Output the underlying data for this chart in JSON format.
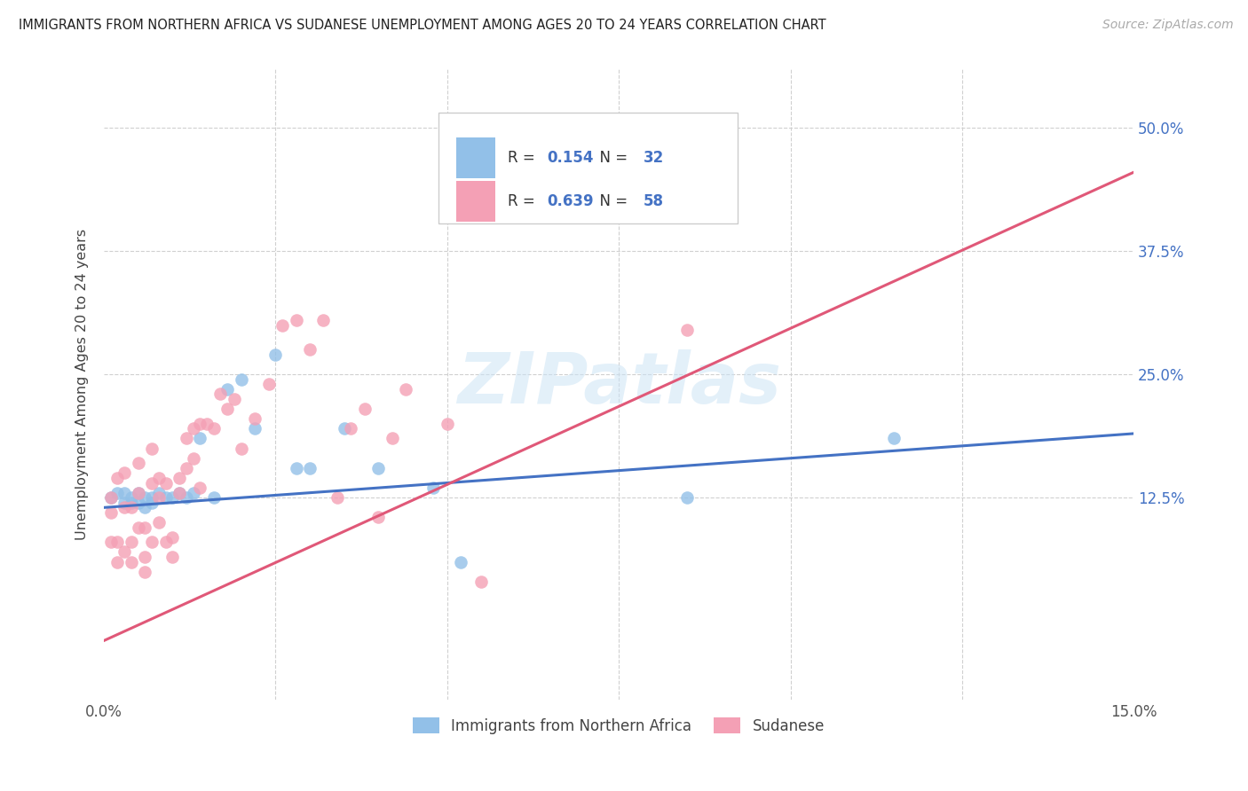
{
  "title": "IMMIGRANTS FROM NORTHERN AFRICA VS SUDANESE UNEMPLOYMENT AMONG AGES 20 TO 24 YEARS CORRELATION CHART",
  "source": "Source: ZipAtlas.com",
  "ylabel": "Unemployment Among Ages 20 to 24 years",
  "legend_label_1": "Immigrants from Northern Africa",
  "legend_label_2": "Sudanese",
  "R1": 0.154,
  "N1": 32,
  "R2": 0.639,
  "N2": 58,
  "xlim": [
    0.0,
    0.15
  ],
  "ylim": [
    -0.08,
    0.56
  ],
  "color_blue": "#92C0E8",
  "color_pink": "#F4A0B5",
  "line_blue": "#4472C4",
  "line_pink": "#E05878",
  "background": "#ffffff",
  "blue_x": [
    0.001,
    0.002,
    0.003,
    0.003,
    0.004,
    0.004,
    0.005,
    0.005,
    0.006,
    0.006,
    0.007,
    0.007,
    0.008,
    0.009,
    0.01,
    0.011,
    0.012,
    0.013,
    0.014,
    0.016,
    0.018,
    0.02,
    0.022,
    0.025,
    0.028,
    0.03,
    0.035,
    0.04,
    0.048,
    0.052,
    0.085,
    0.115
  ],
  "blue_y": [
    0.125,
    0.13,
    0.12,
    0.13,
    0.125,
    0.12,
    0.13,
    0.12,
    0.125,
    0.115,
    0.125,
    0.12,
    0.13,
    0.125,
    0.125,
    0.13,
    0.125,
    0.13,
    0.185,
    0.125,
    0.235,
    0.245,
    0.195,
    0.27,
    0.155,
    0.155,
    0.195,
    0.155,
    0.135,
    0.06,
    0.125,
    0.185
  ],
  "pink_x": [
    0.001,
    0.001,
    0.001,
    0.002,
    0.002,
    0.002,
    0.003,
    0.003,
    0.003,
    0.004,
    0.004,
    0.004,
    0.005,
    0.005,
    0.005,
    0.006,
    0.006,
    0.006,
    0.007,
    0.007,
    0.007,
    0.008,
    0.008,
    0.008,
    0.009,
    0.009,
    0.01,
    0.01,
    0.011,
    0.011,
    0.012,
    0.012,
    0.013,
    0.013,
    0.014,
    0.014,
    0.015,
    0.016,
    0.017,
    0.018,
    0.019,
    0.02,
    0.022,
    0.024,
    0.026,
    0.028,
    0.03,
    0.032,
    0.034,
    0.036,
    0.038,
    0.04,
    0.042,
    0.044,
    0.05,
    0.055,
    0.065,
    0.085
  ],
  "pink_y": [
    0.125,
    0.11,
    0.08,
    0.145,
    0.08,
    0.06,
    0.15,
    0.115,
    0.07,
    0.115,
    0.08,
    0.06,
    0.16,
    0.13,
    0.095,
    0.095,
    0.065,
    0.05,
    0.175,
    0.14,
    0.08,
    0.125,
    0.145,
    0.1,
    0.14,
    0.08,
    0.085,
    0.065,
    0.145,
    0.13,
    0.155,
    0.185,
    0.195,
    0.165,
    0.135,
    0.2,
    0.2,
    0.195,
    0.23,
    0.215,
    0.225,
    0.175,
    0.205,
    0.24,
    0.3,
    0.305,
    0.275,
    0.305,
    0.125,
    0.195,
    0.215,
    0.105,
    0.185,
    0.235,
    0.2,
    0.04,
    0.475,
    0.295
  ]
}
